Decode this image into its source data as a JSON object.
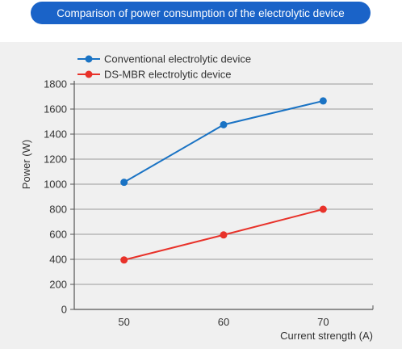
{
  "header": {
    "title": "Comparison of power consumption of the electrolytic device"
  },
  "chart_data": {
    "type": "line",
    "title": "Comparison of power consumption of the electrolytic device",
    "xlabel": "Current strength (A)",
    "ylabel": "Power (W)",
    "x": [
      50,
      60,
      70
    ],
    "ylim": [
      0,
      1800
    ],
    "yticks": [
      0,
      200,
      400,
      600,
      800,
      1000,
      1200,
      1400,
      1600,
      1800
    ],
    "grid": true,
    "legend_position": "top-left",
    "series": [
      {
        "name": "Conventional electrolytic device",
        "color": "#1a73c4",
        "values": [
          1015,
          1475,
          1665
        ]
      },
      {
        "name": "DS-MBR electrolytic device",
        "color": "#e8322a",
        "values": [
          395,
          595,
          800
        ]
      }
    ]
  }
}
